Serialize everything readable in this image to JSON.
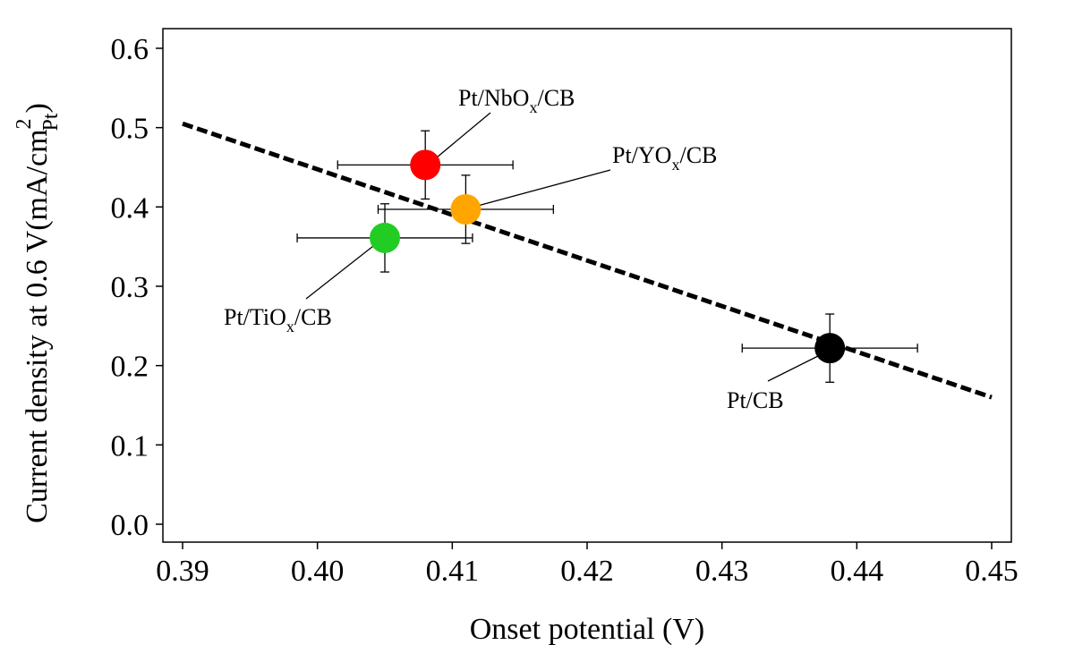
{
  "chart_data": {
    "type": "scatter",
    "title": "",
    "xlabel": "Onset potential (V)",
    "ylabel": {
      "prefix": "Current density at 0.6 V(mA/cm",
      "sup": "2",
      "sub": "Pt",
      "suffix": ")"
    },
    "xlim": [
      0.39,
      0.45
    ],
    "ylim": [
      0.0,
      0.6
    ],
    "x_ticks": [
      "0.39",
      "0.40",
      "0.41",
      "0.42",
      "0.43",
      "0.44",
      "0.45"
    ],
    "y_ticks": [
      "0.0",
      "0.1",
      "0.2",
      "0.3",
      "0.4",
      "0.5",
      "0.6"
    ],
    "grid": false,
    "points": [
      {
        "label": "Pt/NbO",
        "sub": "x",
        "suffix": "/CB",
        "x": 0.408,
        "y": 0.453,
        "xerr": 0.0065,
        "yerr": 0.043,
        "color": "#ff0000"
      },
      {
        "label": "Pt/YO",
        "sub": "x",
        "suffix": "/CB",
        "x": 0.411,
        "y": 0.397,
        "xerr": 0.0065,
        "yerr": 0.043,
        "color": "#ffa500"
      },
      {
        "label": "Pt/TiO",
        "sub": "x",
        "suffix": "/CB",
        "x": 0.405,
        "y": 0.361,
        "xerr": 0.0065,
        "yerr": 0.043,
        "color": "#22cc22"
      },
      {
        "label": "Pt/CB",
        "sub": "",
        "suffix": "",
        "x": 0.438,
        "y": 0.222,
        "xerr": 0.0065,
        "yerr": 0.043,
        "color": "#000000"
      }
    ],
    "trendline": {
      "style": "dashed",
      "x": [
        0.39,
        0.45
      ],
      "y": [
        0.505,
        0.16
      ]
    }
  }
}
